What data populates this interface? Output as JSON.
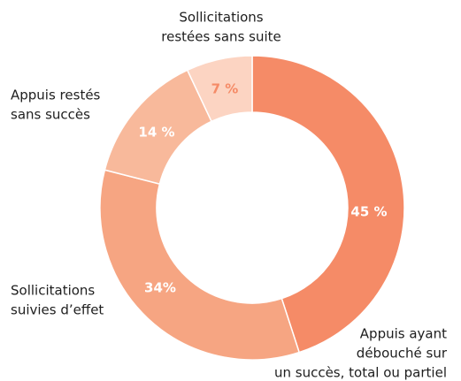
{
  "chart_data": {
    "type": "pie",
    "categories": [
      [
        "Appuis ayant",
        "débouché sur",
        "un succès, total ou partiel"
      ],
      [
        "Sollicitations",
        "suivies d’effet"
      ],
      [
        "Appuis restés",
        "sans succès"
      ],
      [
        "Sollicitations",
        "restées sans suite"
      ]
    ],
    "values": [
      45,
      34,
      14,
      7
    ],
    "value_labels": [
      "45 %",
      "34%",
      "14 %",
      "7 %"
    ],
    "colors": [
      "#f58b67",
      "#f6a582",
      "#f8b99b",
      "#fcd4c2"
    ]
  }
}
